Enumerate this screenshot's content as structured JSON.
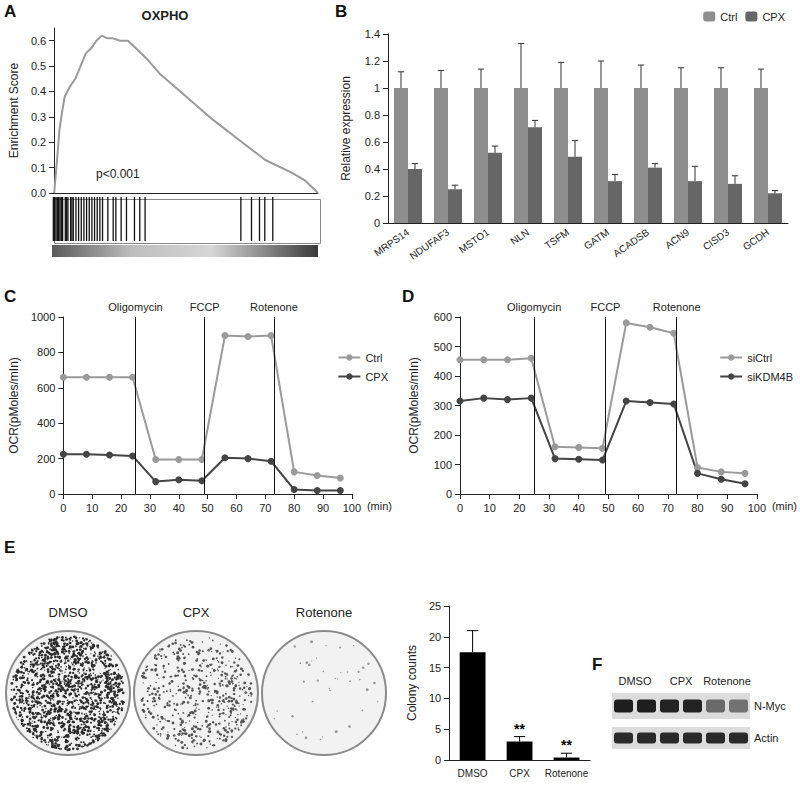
{
  "chart_data": [
    {
      "panel": "A",
      "type": "line",
      "title": "OXPHO",
      "annotation": "p<0.001",
      "y_label": "Enrichment Score",
      "x": [
        0,
        1,
        2,
        3,
        4,
        5,
        6,
        8,
        10,
        12,
        14,
        16,
        18,
        20,
        22,
        25,
        28,
        30,
        35,
        40,
        50,
        60,
        70,
        80,
        90,
        95,
        100
      ],
      "values": [
        0,
        0.12,
        0.25,
        0.32,
        0.38,
        0.4,
        0.42,
        0.45,
        0.5,
        0.55,
        0.57,
        0.6,
        0.62,
        0.61,
        0.61,
        0.6,
        0.6,
        0.58,
        0.53,
        0.47,
        0.38,
        0.29,
        0.21,
        0.13,
        0.08,
        0.05,
        0
      ],
      "color": "#9a9a9a",
      "hits": [
        0.5,
        1,
        1.5,
        2,
        2.5,
        3,
        3.5,
        4,
        5,
        5.5,
        6,
        7,
        7.5,
        8,
        9,
        10,
        11,
        12,
        13,
        14,
        15,
        16,
        17,
        18,
        19,
        21,
        23,
        24,
        26,
        28,
        31,
        33,
        35,
        71,
        75,
        78,
        80,
        83
      ],
      "xlim": [
        0,
        100
      ],
      "ylim": [
        0,
        0.65
      ],
      "yticks": [
        {
          "value": 0,
          "label": "0.0"
        },
        0.1,
        0.2,
        0.3,
        0.4,
        0.5,
        0.6
      ],
      "tick_labels": "y",
      "grid": false
    },
    {
      "panel": "B",
      "type": "bar",
      "y_label": "Relative expression",
      "categories": [
        "MRPS14",
        "NDUFAF3",
        "MSTO1",
        "NLN",
        "TSFM",
        "GATM",
        "ACADSB",
        "ACN9",
        "CISD3",
        "GCDH"
      ],
      "series": [
        {
          "name": "Ctrl",
          "color": "#8e8e8e",
          "values": [
            1,
            1,
            1,
            1,
            1,
            1,
            1,
            1,
            1,
            1
          ],
          "errors": [
            0.12,
            0.13,
            0.14,
            0.33,
            0.19,
            0.2,
            0.17,
            0.15,
            0.15,
            0.14
          ]
        },
        {
          "name": "CPX",
          "color": "#666666",
          "values": [
            0.4,
            0.25,
            0.52,
            0.71,
            0.49,
            0.31,
            0.41,
            0.31,
            0.29,
            0.22
          ],
          "errors": [
            0.04,
            0.03,
            0.05,
            0.05,
            0.12,
            0.05,
            0.03,
            0.11,
            0.06,
            0.02
          ]
        }
      ],
      "ylim": [
        0,
        1.4
      ],
      "yticks": [
        0,
        0.2,
        0.4,
        0.6,
        0.8,
        1,
        1.2,
        1.4
      ],
      "legend": "top-right",
      "grid": false
    },
    {
      "panel": "C",
      "type": "line",
      "y_label": "OCR(pMoles/mIn)",
      "x_label": "(min)",
      "x": [
        0,
        8,
        16,
        24,
        32,
        40,
        48,
        56,
        64,
        72,
        80,
        88,
        96
      ],
      "series": [
        {
          "name": "Ctrl",
          "color": "#9a9a9a",
          "values": [
            660,
            660,
            660,
            660,
            195,
            195,
            195,
            895,
            890,
            895,
            125,
            105,
            90
          ]
        },
        {
          "name": "CPX",
          "color": "#444444",
          "values": [
            225,
            225,
            220,
            215,
            70,
            80,
            75,
            205,
            200,
            185,
            25,
            20,
            20
          ]
        }
      ],
      "events": [
        {
          "x": 25,
          "label": "Oligomycin"
        },
        {
          "x": 49,
          "label": "FCCP"
        },
        {
          "x": 73,
          "label": "Rotenone"
        }
      ],
      "xlim": [
        0,
        100
      ],
      "xticks": [
        0,
        10,
        20,
        30,
        40,
        50,
        60,
        70,
        80,
        90,
        100
      ],
      "ylim": [
        0,
        1000
      ],
      "yticks": [
        0,
        200,
        400,
        600,
        800,
        1000
      ],
      "legend": "right",
      "marker": "circle",
      "grid": false
    },
    {
      "panel": "D",
      "type": "line",
      "y_label": "OCR(pMoles/mIn)",
      "x_label": "(min)",
      "x": [
        0,
        8,
        16,
        24,
        32,
        40,
        48,
        56,
        64,
        72,
        80,
        88,
        96
      ],
      "series": [
        {
          "name": "siCtrl",
          "color": "#9a9a9a",
          "values": [
            455,
            455,
            455,
            460,
            160,
            158,
            155,
            580,
            565,
            545,
            90,
            75,
            70
          ]
        },
        {
          "name": "siKDM4B",
          "color": "#444444",
          "values": [
            315,
            325,
            320,
            325,
            120,
            118,
            115,
            315,
            310,
            305,
            70,
            50,
            35
          ]
        }
      ],
      "events": [
        {
          "x": 25,
          "label": "Oligomycin"
        },
        {
          "x": 49,
          "label": "FCCP"
        },
        {
          "x": 73,
          "label": "Rotenone"
        }
      ],
      "xlim": [
        0,
        100
      ],
      "xticks": [
        0,
        10,
        20,
        30,
        40,
        50,
        60,
        70,
        80,
        90,
        100
      ],
      "ylim": [
        0,
        600
      ],
      "yticks": [
        0,
        100,
        200,
        300,
        400,
        500,
        600
      ],
      "legend": "right",
      "marker": "circle",
      "grid": false
    },
    {
      "type": "bar",
      "y_label": "Colony counts",
      "categories": [
        "DMSO",
        "CPX",
        "Rotenone"
      ],
      "values": [
        17.5,
        3,
        0.4
      ],
      "errors": [
        3.5,
        0.8,
        0.7
      ],
      "annotations": [
        null,
        "**",
        "**"
      ],
      "color": "#000000",
      "ylim": [
        0,
        25
      ],
      "yticks": [
        0,
        5,
        10,
        15,
        20,
        25
      ],
      "grid": false
    }
  ],
  "images": {
    "E": {
      "panel": "E",
      "plates": [
        "DMSO",
        "CPX",
        "Rotenone"
      ]
    },
    "F": {
      "panel": "F",
      "lanes": [
        "DMSO",
        "CPX",
        "Rotenone"
      ],
      "bands": [
        "N-Myc",
        "Actin"
      ]
    }
  }
}
